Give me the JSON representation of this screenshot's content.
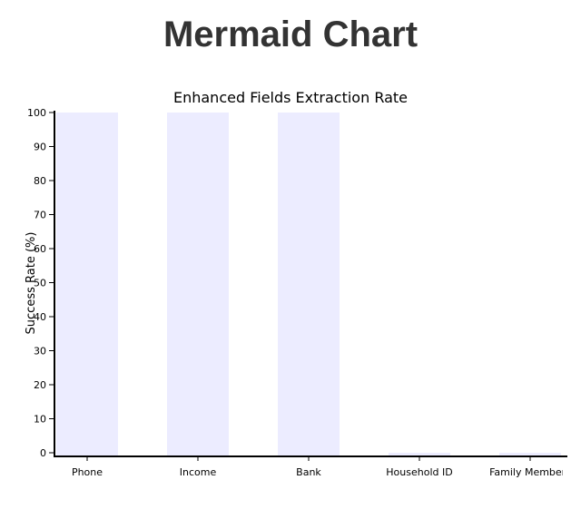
{
  "page": {
    "heading": "Mermaid Chart"
  },
  "chart_data": {
    "type": "bar",
    "title": "Enhanced Fields Extraction Rate",
    "xlabel": "",
    "ylabel": "Success Rate (%)",
    "categories": [
      "Phone",
      "Income",
      "Bank",
      "Household ID",
      "Family Members"
    ],
    "values": [
      100,
      100,
      100,
      0,
      0
    ],
    "ylim": [
      0,
      100
    ],
    "yticks": [
      0,
      10,
      20,
      30,
      40,
      50,
      60,
      70,
      80,
      90,
      100
    ],
    "grid": false,
    "bar_color": "#ececff",
    "axis_color": "#000000"
  }
}
